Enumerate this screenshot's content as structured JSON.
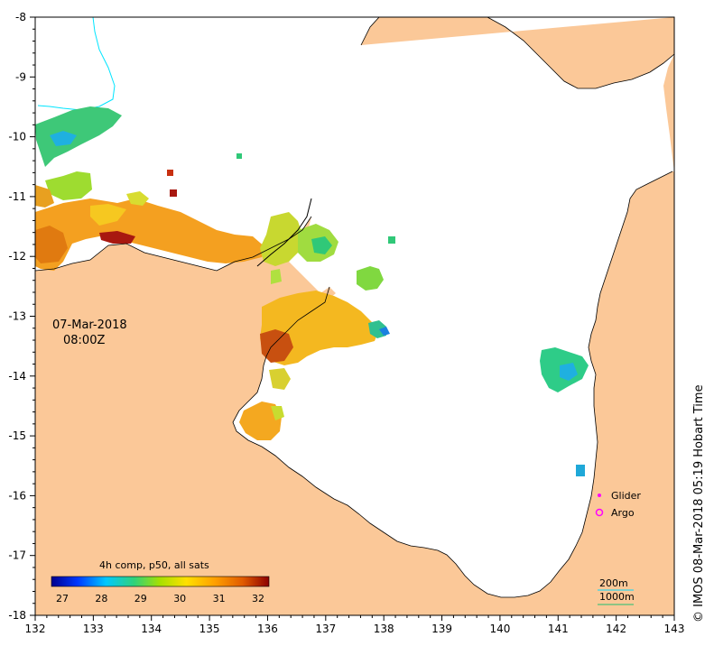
{
  "map": {
    "date_label": "07-Mar-2018",
    "time_label": "08:00Z",
    "credit": "© IMOS 08-Mar-2018 05:19 Hobart Time",
    "x_ticks": [
      "132",
      "133",
      "134",
      "135",
      "136",
      "137",
      "138",
      "139",
      "140",
      "141",
      "142",
      "143"
    ],
    "y_ticks": [
      "-8",
      "-9",
      "-10",
      "-11",
      "-12",
      "-13",
      "-14",
      "-15",
      "-16",
      "-17",
      "-18"
    ],
    "colorbar": {
      "title": "4h comp, p50, all sats",
      "ticks": [
        "27",
        "28",
        "29",
        "30",
        "31",
        "32"
      ],
      "colors": [
        "#00008f",
        "#0038ff",
        "#00c8ff",
        "#2fd27a",
        "#a8e000",
        "#ffe000",
        "#ffa000",
        "#e05a00",
        "#8c0000"
      ]
    },
    "legend": {
      "glider_label": "Glider",
      "argo_label": "Argo",
      "glider_color": "#ff00ff",
      "argo_color": "#ff00ff"
    },
    "isobath_legend": {
      "line_200": "200m",
      "line_1000": "1000m",
      "color_200": "#00d8ff",
      "color_1000": "#20c070"
    },
    "land_color": "#fbc898",
    "bathy_line_color": "#00e5ff"
  }
}
